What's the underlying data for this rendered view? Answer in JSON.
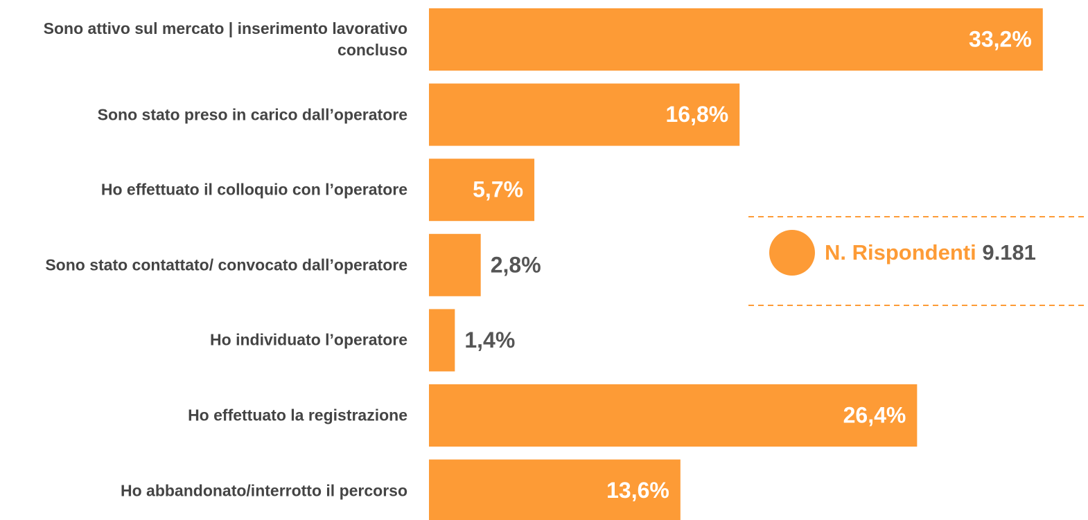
{
  "chart_data": {
    "type": "bar",
    "orientation": "horizontal",
    "categories": [
      "Sono attivo sul mercato | inserimento lavorativo concluso",
      "Sono stato preso in carico dall’operatore",
      "Ho effettuato il colloquio con l’operatore",
      "Sono stato contattato/ convocato dall’operatore",
      "Ho individuato l’operatore",
      "Ho effettuato la registrazione",
      "Ho abbandonato/interrotto il percorso"
    ],
    "values": [
      33.2,
      16.8,
      5.7,
      2.8,
      1.4,
      26.4,
      13.6
    ],
    "value_labels": [
      "33,2%",
      "16,8%",
      "5,7%",
      "2,8%",
      "1,4%",
      "26,4%",
      "13,6%"
    ],
    "color": "#fd9b36",
    "annotation": {
      "label": "N. Rispondenti",
      "value": "9.181"
    }
  }
}
